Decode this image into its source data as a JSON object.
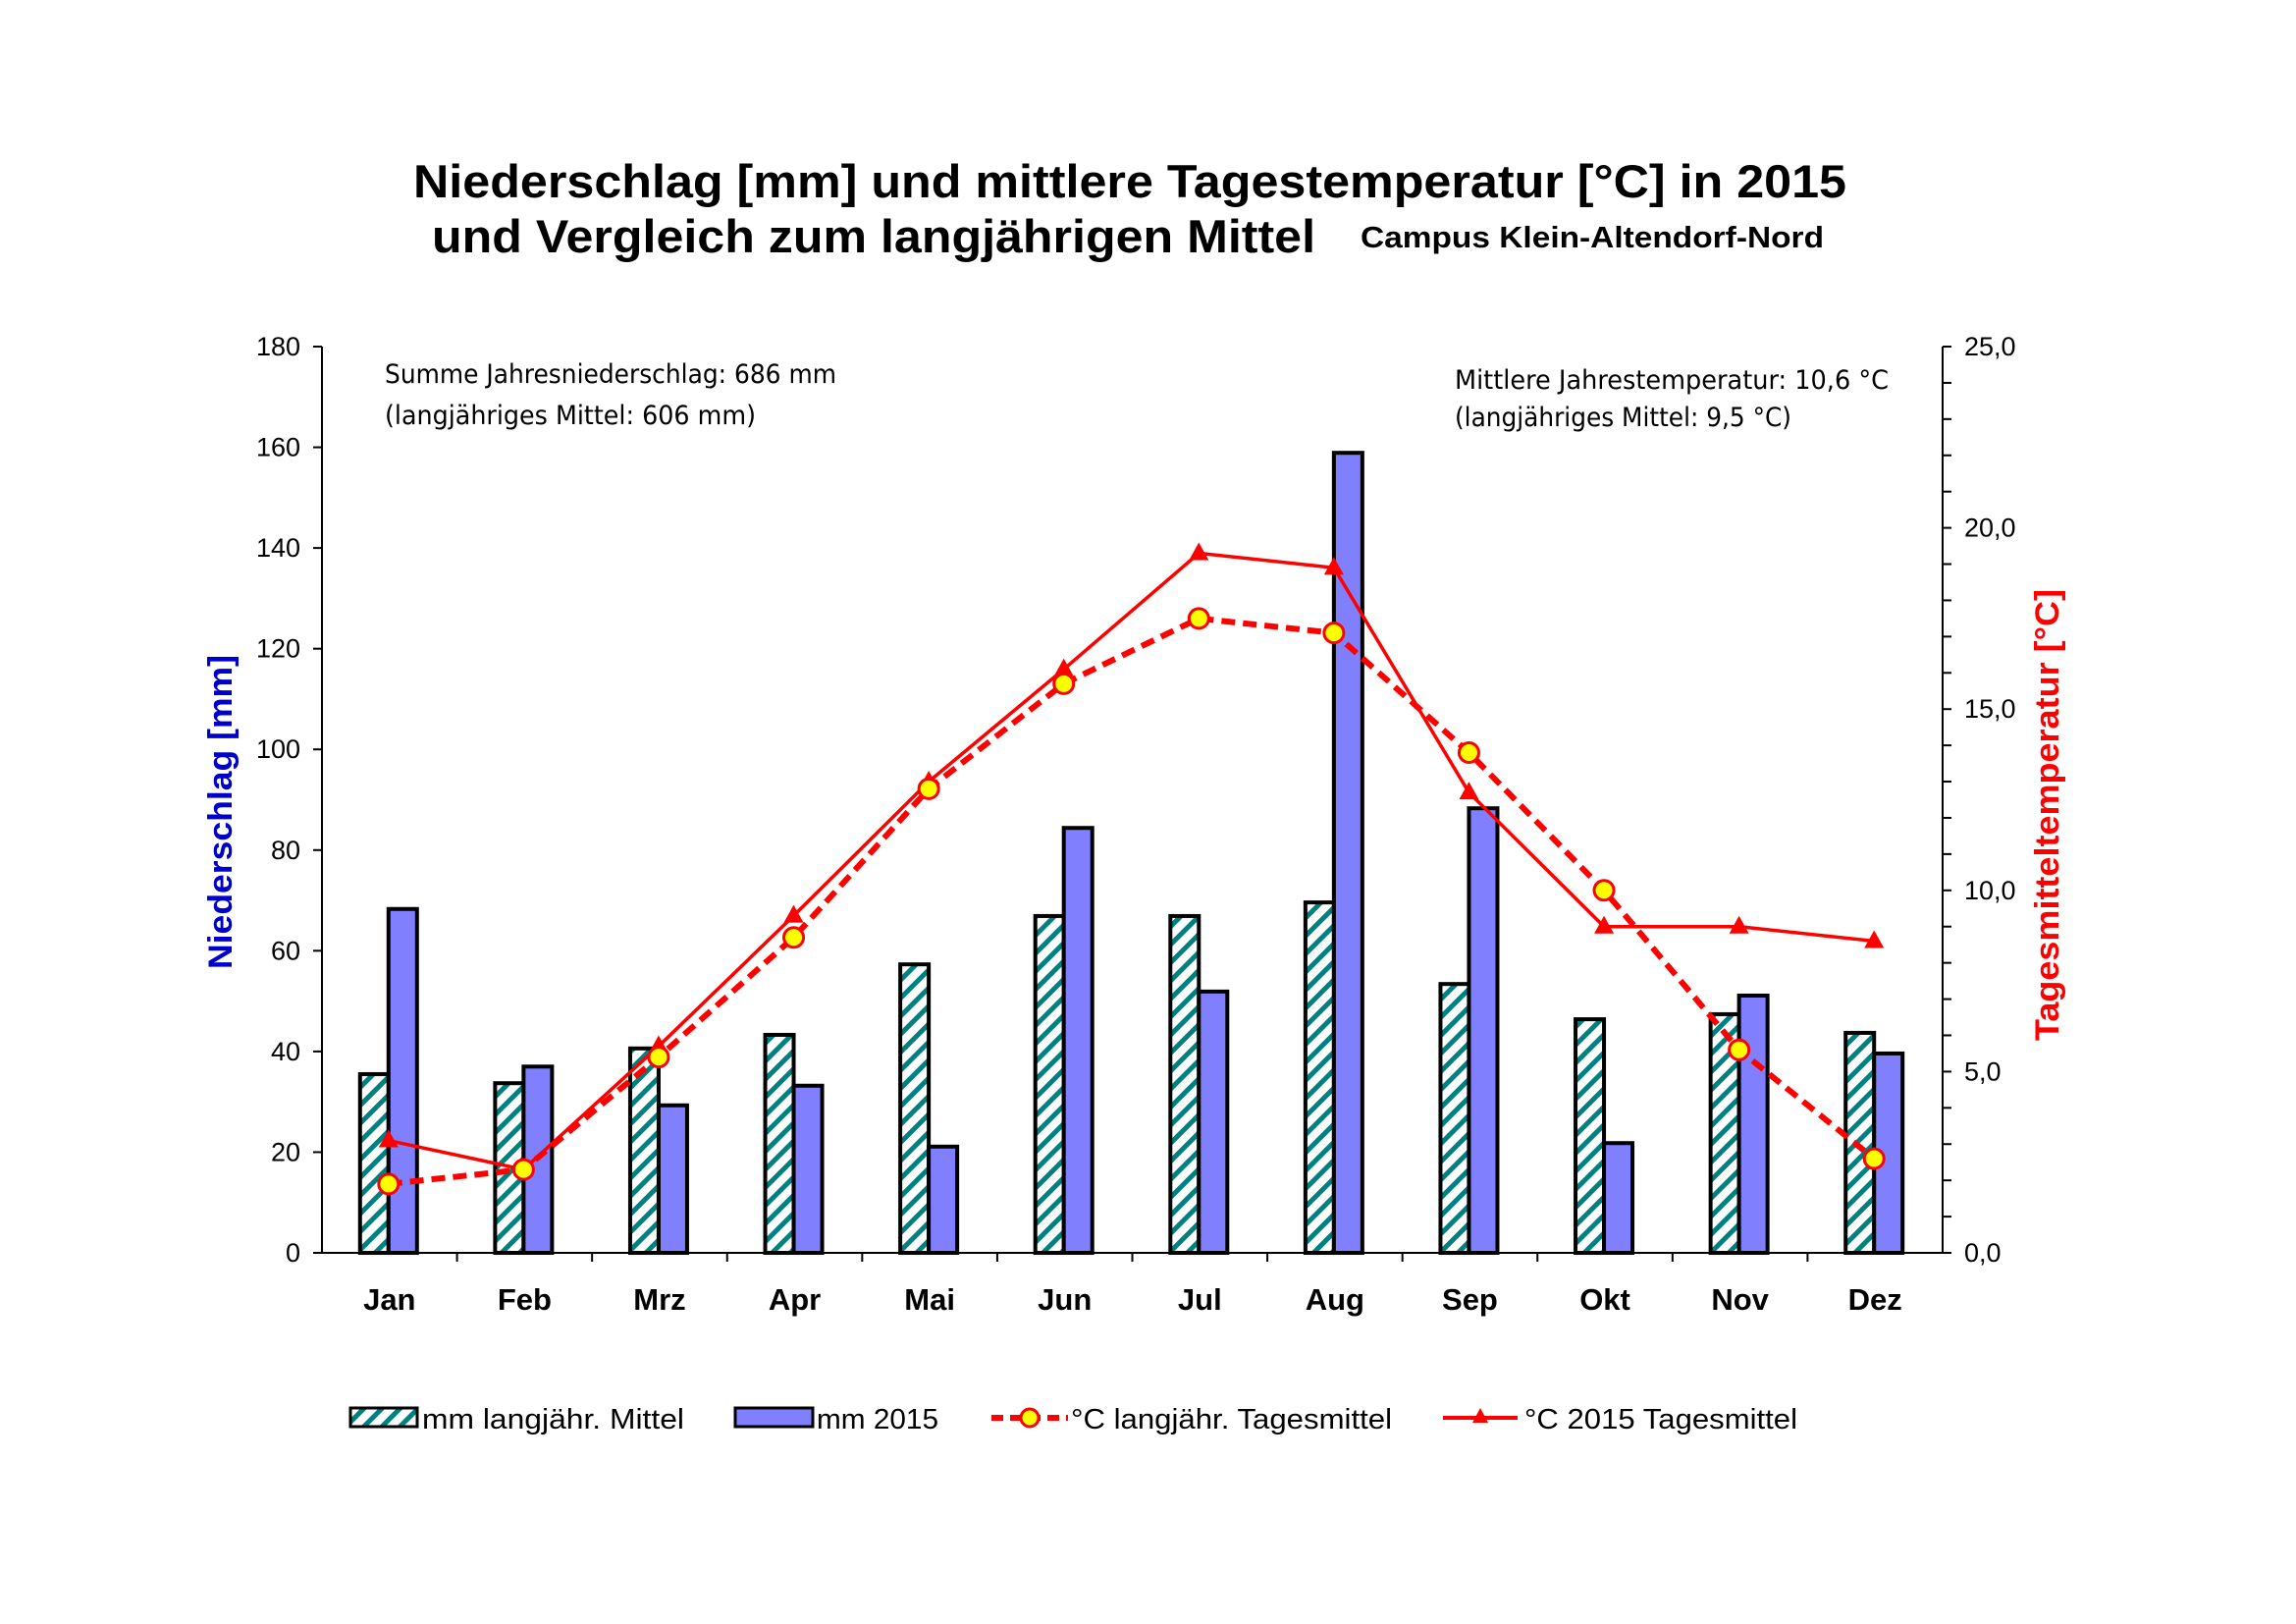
{
  "chart_data": {
    "type": "bar",
    "title": "Niederschlag [mm] und mittlere Tagestemperatur [°C] in 2015",
    "subtitle": "und Vergleich zum langjährigen Mittel",
    "location": "Campus Klein-Altendorf-Nord",
    "categories": [
      "Jan",
      "Feb",
      "Mrz",
      "Apr",
      "Mai",
      "Jun",
      "Jul",
      "Aug",
      "Sep",
      "Okt",
      "Nov",
      "Dez"
    ],
    "ylabel_left": "Niederschlag [mm]",
    "ylabel_right": "Tagesmitteltemperatur [°C]",
    "ylim_left": [
      0,
      180
    ],
    "ylim_right": [
      0,
      25
    ],
    "left_ticks": [
      "0",
      "20",
      "40",
      "60",
      "80",
      "100",
      "120",
      "140",
      "160",
      "180"
    ],
    "left_tick_values": [
      0,
      20,
      40,
      60,
      80,
      100,
      120,
      140,
      160,
      180
    ],
    "right_ticks": [
      "0,0",
      "5,0",
      "10,0",
      "15,0",
      "20,0",
      "25,0"
    ],
    "right_tick_values": [
      0,
      5,
      10,
      15,
      20,
      25
    ],
    "right_minor_step": 1,
    "grid": false,
    "legend_position": "bottom",
    "series": [
      {
        "name": "mm langjähr. Mittel",
        "kind": "bar",
        "axis": "left",
        "pattern": "hatched",
        "color": "#008080",
        "values": [
          35.5,
          33.7,
          40.6,
          43.3,
          57.3,
          66.9,
          66.9,
          69.6,
          53.4,
          46.4,
          47.4,
          43.7
        ]
      },
      {
        "name": "mm 2015",
        "kind": "bar",
        "axis": "left",
        "color": "#8080FF",
        "values": [
          68.3,
          37.0,
          29.3,
          33.2,
          21.1,
          84.4,
          51.9,
          158.9,
          88.3,
          21.8,
          51.1,
          39.6
        ]
      },
      {
        "name": "°C langjähr. Tagesmittel",
        "kind": "line",
        "axis": "right",
        "style": "dashed",
        "marker": "circle",
        "color": "#FF0000",
        "marker_fill": "#FFFF00",
        "values": [
          1.9,
          2.3,
          5.4,
          8.7,
          12.8,
          15.7,
          17.5,
          17.1,
          13.8,
          10.0,
          5.6,
          2.6
        ]
      },
      {
        "name": "°C 2015 Tagesmittel",
        "kind": "line",
        "axis": "right",
        "style": "solid",
        "marker": "triangle",
        "color": "#FF0000",
        "values": [
          3.1,
          2.3,
          5.7,
          9.3,
          13.0,
          16.1,
          19.3,
          18.9,
          12.7,
          9.0,
          9.0,
          8.6
        ]
      }
    ],
    "annotations": {
      "precip_line1": "Summe Jahresniederschlag:  686 mm",
      "precip_line2": "(langjähriges Mittel:  606 mm)",
      "temp_line1": "Mittlere Jahrestemperatur:  10,6 °C",
      "temp_line2": "(langjähriges Mittel:  9,5 °C)"
    },
    "colors": {
      "left_axis_label": "#0000CC",
      "right_axis_label": "#FF0000",
      "hatch": "#008080",
      "bar2015": "#8080FF",
      "line": "#FF0000",
      "marker_fill": "#FFFF00"
    }
  }
}
